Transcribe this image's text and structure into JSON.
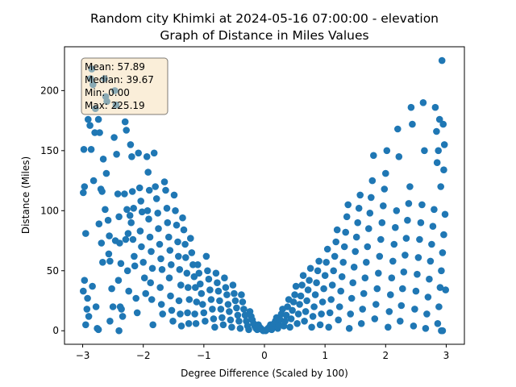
{
  "chart_data": {
    "type": "scatter",
    "title_line1": "Random city Khimki at 2024-05-16 07:00:00  - elevation",
    "title_line2": "Graph of Distance in Miles Values",
    "xlabel": "Degree Difference (Scaled by 100)",
    "ylabel": "Distance (Miles)",
    "xlim": [
      -3.3,
      3.3
    ],
    "ylim": [
      -11.25,
      236.5
    ],
    "x_ticks": [
      -3,
      -2,
      -1,
      0,
      1,
      2,
      3
    ],
    "y_ticks": [
      0,
      50,
      100,
      150,
      200
    ],
    "point_color": "#1f77b4",
    "stats_box": {
      "mean": "Mean: 57.89",
      "median": "Median: 39.67",
      "min": "Min: 0.00",
      "max": "Max: 225.19",
      "box_color": "#f5deb3"
    },
    "points": [
      [
        -2.95,
        81
      ],
      [
        -2.97,
        120
      ],
      [
        -2.98,
        151
      ],
      [
        -2.99,
        115
      ],
      [
        -2.97,
        42
      ],
      [
        -2.99,
        33
      ],
      [
        -2.93,
        18
      ],
      [
        -2.9,
        12
      ],
      [
        -2.92,
        27
      ],
      [
        -2.95,
        5
      ],
      [
        -2.91,
        176
      ],
      [
        -2.88,
        171
      ],
      [
        -2.85,
        218
      ],
      [
        -2.87,
        210
      ],
      [
        -2.83,
        205
      ],
      [
        -2.8,
        165
      ],
      [
        -2.86,
        151
      ],
      [
        -2.82,
        125
      ],
      [
        -2.84,
        37
      ],
      [
        -2.78,
        20
      ],
      [
        -2.76,
        2
      ],
      [
        -2.74,
        1
      ],
      [
        -2.79,
        185
      ],
      [
        -2.74,
        176
      ],
      [
        -2.72,
        165
      ],
      [
        -2.7,
        118
      ],
      [
        -2.68,
        116
      ],
      [
        -2.73,
        89
      ],
      [
        -2.69,
        73
      ],
      [
        -2.67,
        57
      ],
      [
        -2.64,
        210
      ],
      [
        -2.62,
        195
      ],
      [
        -2.6,
        191
      ],
      [
        -2.66,
        143
      ],
      [
        -2.61,
        131
      ],
      [
        -2.63,
        101
      ],
      [
        -2.58,
        92
      ],
      [
        -2.56,
        79
      ],
      [
        -2.57,
        64
      ],
      [
        -2.55,
        58
      ],
      [
        -2.52,
        35
      ],
      [
        -2.5,
        20
      ],
      [
        -2.55,
        8
      ],
      [
        -2.47,
        200
      ],
      [
        -2.45,
        188
      ],
      [
        -2.48,
        161
      ],
      [
        -2.44,
        147
      ],
      [
        -2.42,
        114
      ],
      [
        -2.4,
        95
      ],
      [
        -2.46,
        75
      ],
      [
        -2.39,
        73
      ],
      [
        -2.37,
        56
      ],
      [
        -2.41,
        42
      ],
      [
        -2.38,
        20
      ],
      [
        -2.36,
        18
      ],
      [
        -2.34,
        12
      ],
      [
        -2.4,
        0
      ],
      [
        -2.3,
        174
      ],
      [
        -2.28,
        167
      ],
      [
        -2.31,
        114
      ],
      [
        -2.27,
        101
      ],
      [
        -2.25,
        81
      ],
      [
        -2.29,
        76
      ],
      [
        -2.26,
        50
      ],
      [
        -2.24,
        33
      ],
      [
        -2.21,
        155
      ],
      [
        -2.19,
        145
      ],
      [
        -2.18,
        116
      ],
      [
        -2.16,
        102
      ],
      [
        -2.22,
        96
      ],
      [
        -2.2,
        90
      ],
      [
        -2.17,
        76
      ],
      [
        -2.15,
        62
      ],
      [
        -2.14,
        54
      ],
      [
        -2.12,
        27
      ],
      [
        -2.1,
        15
      ],
      [
        -2.08,
        148
      ],
      [
        -2.06,
        119
      ],
      [
        -2.04,
        108
      ],
      [
        -2.02,
        99
      ],
      [
        -2.05,
        83
      ],
      [
        -2.03,
        70
      ],
      [
        -2.0,
        57
      ],
      [
        -1.98,
        44
      ],
      [
        -1.96,
        31
      ],
      [
        -1.94,
        145
      ],
      [
        -1.92,
        132
      ],
      [
        -1.9,
        117
      ],
      [
        -1.93,
        100
      ],
      [
        -1.91,
        93
      ],
      [
        -1.89,
        78
      ],
      [
        -1.87,
        66
      ],
      [
        -1.85,
        52
      ],
      [
        -1.88,
        40
      ],
      [
        -1.86,
        26
      ],
      [
        -1.84,
        5
      ],
      [
        -1.82,
        148
      ],
      [
        -1.8,
        120
      ],
      [
        -1.78,
        110
      ],
      [
        -1.76,
        98
      ],
      [
        -1.75,
        85
      ],
      [
        -1.73,
        72
      ],
      [
        -1.71,
        60
      ],
      [
        -1.69,
        51
      ],
      [
        -1.72,
        36
      ],
      [
        -1.7,
        22
      ],
      [
        -1.68,
        14
      ],
      [
        -1.65,
        124
      ],
      [
        -1.63,
        117
      ],
      [
        -1.61,
        102
      ],
      [
        -1.6,
        90
      ],
      [
        -1.58,
        78
      ],
      [
        -1.56,
        67
      ],
      [
        -1.54,
        55
      ],
      [
        -1.57,
        44
      ],
      [
        -1.55,
        29
      ],
      [
        -1.53,
        17
      ],
      [
        -1.51,
        8
      ],
      [
        -1.49,
        113
      ],
      [
        -1.47,
        100
      ],
      [
        -1.45,
        88
      ],
      [
        -1.43,
        74
      ],
      [
        -1.42,
        62
      ],
      [
        -1.4,
        51
      ],
      [
        -1.38,
        38
      ],
      [
        -1.41,
        25
      ],
      [
        -1.39,
        14
      ],
      [
        -1.37,
        4
      ],
      [
        -1.35,
        94
      ],
      [
        -1.33,
        84
      ],
      [
        -1.31,
        72
      ],
      [
        -1.3,
        61
      ],
      [
        -1.28,
        48
      ],
      [
        -1.26,
        36
      ],
      [
        -1.24,
        26
      ],
      [
        -1.27,
        15
      ],
      [
        -1.25,
        6
      ],
      [
        -1.22,
        77
      ],
      [
        -1.2,
        65
      ],
      [
        -1.18,
        55
      ],
      [
        -1.16,
        45
      ],
      [
        -1.14,
        36
      ],
      [
        -1.12,
        24
      ],
      [
        -1.15,
        14
      ],
      [
        -1.13,
        6
      ],
      [
        -1.1,
        55
      ],
      [
        -1.08,
        48
      ],
      [
        -1.06,
        39
      ],
      [
        -1.04,
        31
      ],
      [
        -1.02,
        22
      ],
      [
        -1.0,
        15
      ],
      [
        -0.98,
        8
      ],
      [
        -0.96,
        62
      ],
      [
        -0.94,
        50
      ],
      [
        -0.92,
        43
      ],
      [
        -0.9,
        34
      ],
      [
        -0.88,
        26
      ],
      [
        -0.86,
        18
      ],
      [
        -0.84,
        10
      ],
      [
        -0.82,
        3
      ],
      [
        -0.8,
        48
      ],
      [
        -0.78,
        40
      ],
      [
        -0.76,
        33
      ],
      [
        -0.74,
        25
      ],
      [
        -0.72,
        18
      ],
      [
        -0.7,
        11
      ],
      [
        -0.68,
        5
      ],
      [
        -0.66,
        44
      ],
      [
        -0.64,
        36
      ],
      [
        -0.62,
        30
      ],
      [
        -0.6,
        22
      ],
      [
        -0.58,
        16
      ],
      [
        -0.56,
        9
      ],
      [
        -0.54,
        3
      ],
      [
        -0.52,
        38
      ],
      [
        -0.5,
        31
      ],
      [
        -0.48,
        25
      ],
      [
        -0.46,
        19
      ],
      [
        -0.44,
        13
      ],
      [
        -0.42,
        8
      ],
      [
        -0.4,
        2
      ],
      [
        -0.38,
        30
      ],
      [
        -0.36,
        24
      ],
      [
        -0.34,
        18
      ],
      [
        -0.32,
        13
      ],
      [
        -0.3,
        8
      ],
      [
        -0.28,
        4
      ],
      [
        -0.26,
        1
      ],
      [
        -0.24,
        16
      ],
      [
        -0.22,
        12
      ],
      [
        -0.2,
        9
      ],
      [
        -0.18,
        6
      ],
      [
        -0.16,
        4
      ],
      [
        -0.14,
        2
      ],
      [
        -0.12,
        1
      ],
      [
        -0.1,
        5
      ],
      [
        -0.08,
        3
      ],
      [
        -0.06,
        2
      ],
      [
        -0.04,
        1
      ],
      [
        -0.02,
        0
      ],
      [
        0.02,
        0
      ],
      [
        0.04,
        1
      ],
      [
        0.06,
        2
      ],
      [
        0.08,
        3
      ],
      [
        0.1,
        5
      ],
      [
        0.12,
        1
      ],
      [
        0.14,
        3
      ],
      [
        0.16,
        6
      ],
      [
        0.18,
        8
      ],
      [
        0.2,
        11
      ],
      [
        0.22,
        2
      ],
      [
        0.24,
        5
      ],
      [
        0.26,
        9
      ],
      [
        0.28,
        14
      ],
      [
        0.3,
        18
      ],
      [
        0.32,
        4
      ],
      [
        0.34,
        8
      ],
      [
        0.36,
        13
      ],
      [
        0.38,
        20
      ],
      [
        0.4,
        26
      ],
      [
        0.42,
        3
      ],
      [
        0.44,
        10
      ],
      [
        0.46,
        17
      ],
      [
        0.48,
        24
      ],
      [
        0.5,
        30
      ],
      [
        0.52,
        37
      ],
      [
        0.54,
        6
      ],
      [
        0.56,
        14
      ],
      [
        0.58,
        22
      ],
      [
        0.6,
        29
      ],
      [
        0.62,
        38
      ],
      [
        0.64,
        46
      ],
      [
        0.66,
        8
      ],
      [
        0.68,
        16
      ],
      [
        0.7,
        25
      ],
      [
        0.72,
        34
      ],
      [
        0.74,
        42
      ],
      [
        0.76,
        52
      ],
      [
        0.78,
        3
      ],
      [
        0.8,
        12
      ],
      [
        0.82,
        20
      ],
      [
        0.84,
        30
      ],
      [
        0.86,
        40
      ],
      [
        0.88,
        50
      ],
      [
        0.9,
        58
      ],
      [
        0.92,
        5
      ],
      [
        0.94,
        14
      ],
      [
        0.96,
        24
      ],
      [
        0.98,
        35
      ],
      [
        1.0,
        46
      ],
      [
        1.02,
        57
      ],
      [
        1.04,
        68
      ],
      [
        1.06,
        3
      ],
      [
        1.08,
        15
      ],
      [
        1.1,
        26
      ],
      [
        1.12,
        38
      ],
      [
        1.14,
        50
      ],
      [
        1.16,
        62
      ],
      [
        1.18,
        74
      ],
      [
        1.2,
        84
      ],
      [
        1.22,
        9
      ],
      [
        1.24,
        20
      ],
      [
        1.26,
        33
      ],
      [
        1.28,
        45
      ],
      [
        1.3,
        57
      ],
      [
        1.32,
        70
      ],
      [
        1.34,
        82
      ],
      [
        1.36,
        95
      ],
      [
        1.38,
        105
      ],
      [
        1.4,
        2
      ],
      [
        1.42,
        14
      ],
      [
        1.44,
        27
      ],
      [
        1.46,
        40
      ],
      [
        1.48,
        53
      ],
      [
        1.5,
        66
      ],
      [
        1.52,
        78
      ],
      [
        1.54,
        90
      ],
      [
        1.56,
        102
      ],
      [
        1.58,
        113
      ],
      [
        1.6,
        6
      ],
      [
        1.62,
        18
      ],
      [
        1.64,
        31
      ],
      [
        1.66,
        44
      ],
      [
        1.68,
        57
      ],
      [
        1.7,
        70
      ],
      [
        1.72,
        85
      ],
      [
        1.74,
        98
      ],
      [
        1.76,
        111
      ],
      [
        1.78,
        125
      ],
      [
        1.8,
        146
      ],
      [
        1.82,
        10
      ],
      [
        1.84,
        22
      ],
      [
        1.86,
        35
      ],
      [
        1.88,
        48
      ],
      [
        1.9,
        62
      ],
      [
        1.92,
        76
      ],
      [
        1.94,
        90
      ],
      [
        1.96,
        104
      ],
      [
        1.98,
        118
      ],
      [
        2.0,
        131
      ],
      [
        2.02,
        150
      ],
      [
        2.04,
        3
      ],
      [
        2.06,
        16
      ],
      [
        2.08,
        30
      ],
      [
        2.1,
        44
      ],
      [
        2.12,
        58
      ],
      [
        2.14,
        72
      ],
      [
        2.16,
        86
      ],
      [
        2.18,
        100
      ],
      [
        2.2,
        168
      ],
      [
        2.22,
        145
      ],
      [
        2.24,
        8
      ],
      [
        2.26,
        21
      ],
      [
        2.28,
        35
      ],
      [
        2.3,
        49
      ],
      [
        2.32,
        63
      ],
      [
        2.34,
        77
      ],
      [
        2.36,
        92
      ],
      [
        2.38,
        106
      ],
      [
        2.4,
        120
      ],
      [
        2.42,
        186
      ],
      [
        2.44,
        172
      ],
      [
        2.46,
        4
      ],
      [
        2.48,
        18
      ],
      [
        2.5,
        33
      ],
      [
        2.52,
        47
      ],
      [
        2.54,
        61
      ],
      [
        2.56,
        76
      ],
      [
        2.58,
        90
      ],
      [
        2.6,
        105
      ],
      [
        2.62,
        190
      ],
      [
        2.64,
        150
      ],
      [
        2.66,
        2
      ],
      [
        2.68,
        14
      ],
      [
        2.7,
        28
      ],
      [
        2.72,
        43
      ],
      [
        2.74,
        58
      ],
      [
        2.76,
        72
      ],
      [
        2.78,
        87
      ],
      [
        2.8,
        101
      ],
      [
        2.82,
        186
      ],
      [
        2.84,
        166
      ],
      [
        2.86,
        6
      ],
      [
        2.88,
        20
      ],
      [
        2.9,
        36
      ],
      [
        2.92,
        50
      ],
      [
        2.94,
        65
      ],
      [
        2.96,
        80
      ],
      [
        2.98,
        97
      ],
      [
        2.97,
        155
      ],
      [
        2.93,
        225
      ],
      [
        2.95,
        172
      ],
      [
        2.96,
        134
      ],
      [
        2.92,
        0
      ],
      [
        2.94,
        0
      ],
      [
        2.91,
        120
      ],
      [
        2.99,
        34
      ],
      [
        2.89,
        176
      ],
      [
        2.87,
        150
      ],
      [
        2.85,
        140
      ]
    ]
  }
}
